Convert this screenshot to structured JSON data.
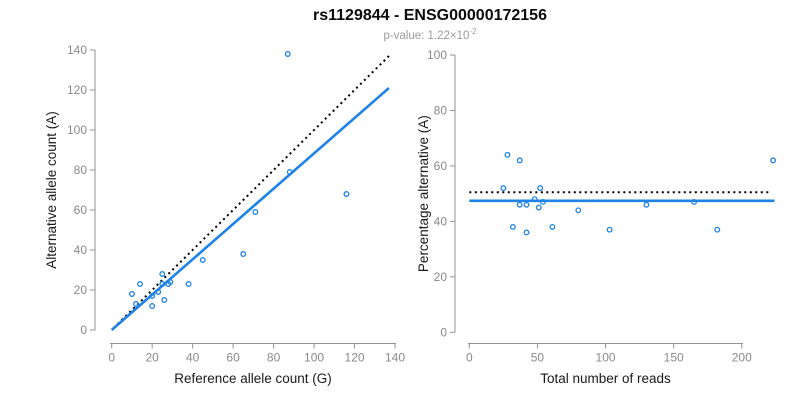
{
  "header": {
    "title": "rs1129844 - ENSG00000172156",
    "subtitle_prefix": "p-value: 1.22×10",
    "subtitle_exponent": "-2"
  },
  "colors": {
    "accent_blue": "#1E82E6",
    "reference_line_black": "#000000",
    "axis_gray": "#929292",
    "tick_label_gray": "#8A8A8A",
    "subtitle_gray": "#9B9B9B"
  },
  "chart_data": [
    {
      "id": "allele-count-scatter",
      "type": "scatter",
      "title": "",
      "xlabel": "Reference allele count (G)",
      "ylabel": "Alternative allele count (A)",
      "xlim": [
        0,
        140
      ],
      "ylim": [
        0,
        140
      ],
      "xticks": [
        0,
        20,
        40,
        60,
        80,
        100,
        120,
        140
      ],
      "yticks": [
        0,
        20,
        40,
        60,
        80,
        100,
        120,
        140
      ],
      "grid": false,
      "legend": "none",
      "points": [
        [
          87,
          138
        ],
        [
          88,
          79
        ],
        [
          116,
          68
        ],
        [
          71,
          59
        ],
        [
          65,
          38
        ],
        [
          45,
          35
        ],
        [
          25,
          28
        ],
        [
          29,
          24
        ],
        [
          38,
          23
        ],
        [
          14,
          23
        ],
        [
          10,
          18
        ],
        [
          23,
          19
        ],
        [
          26,
          15
        ],
        [
          20,
          12
        ],
        [
          12,
          13
        ],
        [
          25,
          23
        ],
        [
          28,
          23
        ],
        [
          20,
          17
        ]
      ],
      "lines": [
        {
          "name": "identity-line",
          "style": "dotted",
          "color": "black",
          "x1": 1,
          "y1": 1,
          "x2": 137,
          "y2": 137
        },
        {
          "name": "fit-line",
          "style": "solid",
          "color": "blue",
          "x1": 0,
          "y1": 0,
          "x2": 137,
          "y2": 121
        }
      ]
    },
    {
      "id": "percentage-vs-reads-scatter",
      "type": "scatter",
      "title": "",
      "xlabel": "Total number of reads",
      "ylabel": "Percentage alternative (A)",
      "xlim": [
        0,
        225
      ],
      "ylim": [
        0,
        100
      ],
      "xticks": [
        0,
        50,
        100,
        150,
        200
      ],
      "yticks": [
        0,
        20,
        40,
        60,
        80,
        100
      ],
      "grid": false,
      "legend": "none",
      "points": [
        [
          28,
          64
        ],
        [
          37,
          62
        ],
        [
          223,
          62
        ],
        [
          25,
          52
        ],
        [
          52,
          52
        ],
        [
          48,
          48
        ],
        [
          37,
          46
        ],
        [
          42,
          46
        ],
        [
          51,
          45
        ],
        [
          54,
          47
        ],
        [
          80,
          44
        ],
        [
          130,
          46
        ],
        [
          165,
          47
        ],
        [
          32,
          38
        ],
        [
          42,
          36
        ],
        [
          61,
          38
        ],
        [
          103,
          37
        ],
        [
          182,
          37
        ]
      ],
      "lines": [
        {
          "name": "fifty-percent-line",
          "style": "dotted",
          "color": "black",
          "x1": 0,
          "y1": 50.5,
          "x2": 221,
          "y2": 50.5
        },
        {
          "name": "mean-percentage-line",
          "style": "solid",
          "color": "blue",
          "x1": 0,
          "y1": 47.4,
          "x2": 224,
          "y2": 47.4
        }
      ]
    }
  ]
}
